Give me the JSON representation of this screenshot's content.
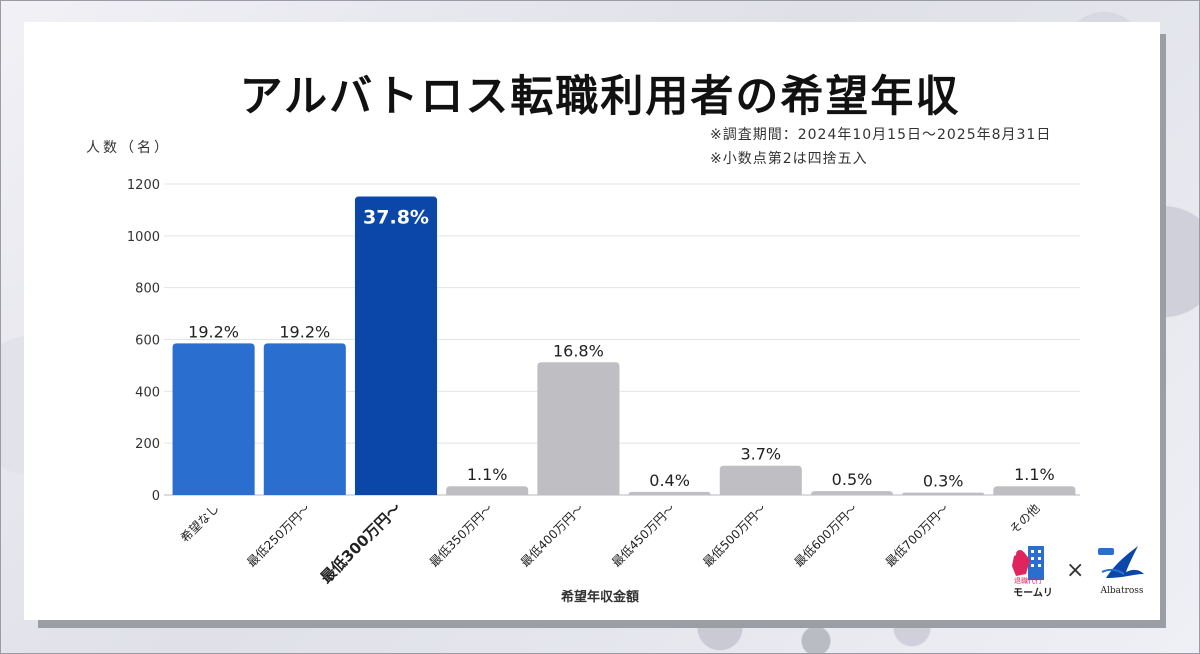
{
  "title": "アルバトロス転職利用者の希望年収",
  "notes": [
    "※調査期間：2024年10月15日～2025年8月31日",
    "※小数点第2は四捨五入"
  ],
  "logos": {
    "left_text": "モームリ",
    "left_small": "退職代行",
    "separator": "×",
    "right_text": "Albatross"
  },
  "colors": {
    "blue": "#2a6fcf",
    "dark_blue": "#0a47a9",
    "gray": "#bfbec3",
    "grid": "#e4e4e8"
  },
  "chart_data": {
    "type": "bar",
    "title": "アルバトロス転職利用者の希望年収",
    "ylabel": "人数（名）",
    "xlabel": "希望年収金額",
    "ylim": [
      0,
      1200
    ],
    "yticks": [
      0,
      200,
      400,
      600,
      800,
      1000,
      1200
    ],
    "grid": true,
    "categories": [
      "希望なし",
      "最低250万円～",
      "最低300万円～",
      "最低350万円～",
      "最低400万円～",
      "最低450万円～",
      "最低500万円～",
      "最低600万円～",
      "最低700万円～",
      "その他"
    ],
    "values": [
      585,
      585,
      1152,
      34,
      512,
      12,
      113,
      15,
      9,
      34
    ],
    "labels": [
      "19.2%",
      "19.2%",
      "37.8%",
      "1.1%",
      "16.8%",
      "0.4%",
      "3.7%",
      "0.5%",
      "0.3%",
      "1.1%"
    ],
    "bar_colors": [
      "blue",
      "blue",
      "dark_blue",
      "gray",
      "gray",
      "gray",
      "gray",
      "gray",
      "gray",
      "gray"
    ],
    "highlight_index": 2
  }
}
